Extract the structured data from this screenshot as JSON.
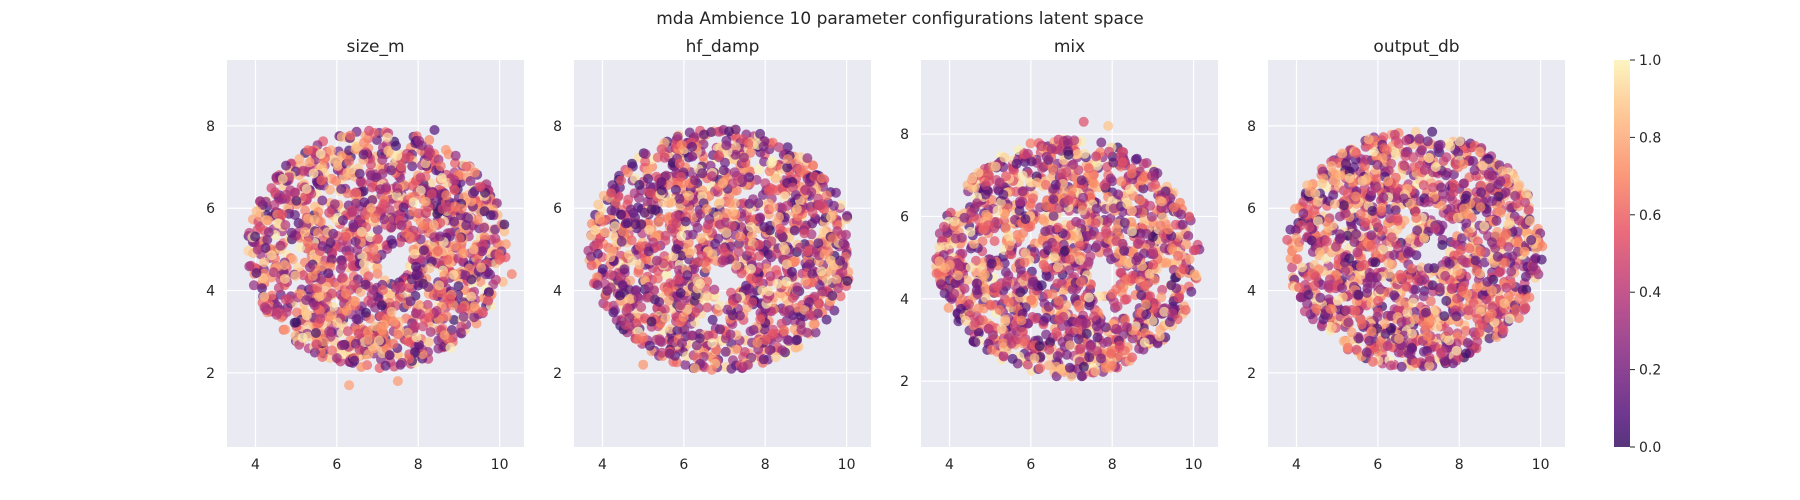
{
  "figure": {
    "suptitle": "mda Ambience 10 parameter configurations latent space"
  },
  "chart_data": [
    {
      "type": "scatter",
      "title": "size_m",
      "xlabel": "",
      "ylabel": "",
      "xlim": [
        3.3,
        10.6
      ],
      "ylim": [
        0.2,
        9.6
      ],
      "xticks": [
        4,
        6,
        8,
        10
      ],
      "yticks": [
        2,
        4,
        6,
        8
      ],
      "grid": true,
      "distribution": {
        "shape": "disk",
        "center": [
          7.0,
          5.0
        ],
        "radius_x": 3.2,
        "radius_y": 2.9,
        "hole_center": [
          7.4,
          4.6
        ],
        "hole_radius": 0.4,
        "point_count": 1500,
        "color_value_range": [
          0.0,
          1.0
        ]
      },
      "outliers": [
        [
          6.3,
          1.7
        ],
        [
          7.5,
          1.8
        ],
        [
          10.3,
          4.4
        ],
        [
          8.4,
          7.9
        ]
      ]
    },
    {
      "type": "scatter",
      "title": "hf_damp",
      "xlabel": "",
      "ylabel": "",
      "xlim": [
        3.3,
        10.6
      ],
      "ylim": [
        0.2,
        9.6
      ],
      "xticks": [
        4,
        6,
        8,
        10
      ],
      "yticks": [
        2,
        4,
        6,
        8
      ],
      "grid": true,
      "distribution": {
        "shape": "disk",
        "center": [
          6.9,
          5.0
        ],
        "radius_x": 3.25,
        "radius_y": 2.95,
        "hole_center": [
          7.0,
          4.3
        ],
        "hole_radius": 0.35,
        "point_count": 1500,
        "color_value_range": [
          0.0,
          1.0
        ]
      },
      "outliers": [
        [
          5.0,
          2.2
        ]
      ]
    },
    {
      "type": "scatter",
      "title": "mix",
      "xlabel": "",
      "ylabel": "",
      "xlim": [
        3.3,
        10.6
      ],
      "ylim": [
        0.4,
        9.8
      ],
      "xticks": [
        4,
        6,
        8,
        10
      ],
      "yticks": [
        2,
        4,
        6,
        8
      ],
      "grid": true,
      "distribution": {
        "shape": "disk",
        "center": [
          6.9,
          5.0
        ],
        "radius_x": 3.25,
        "radius_y": 2.9,
        "hole_center": [
          7.8,
          4.6
        ],
        "hole_radius": 0.4,
        "point_count": 1500,
        "color_value_range": [
          0.0,
          1.0
        ]
      },
      "outliers": [
        [
          7.3,
          8.3
        ],
        [
          7.9,
          8.2
        ]
      ]
    },
    {
      "type": "scatter",
      "title": "output_db",
      "xlabel": "",
      "ylabel": "",
      "xlim": [
        3.3,
        10.6
      ],
      "ylim": [
        0.2,
        9.6
      ],
      "xticks": [
        4,
        6,
        8,
        10
      ],
      "yticks": [
        2,
        4,
        6,
        8
      ],
      "grid": true,
      "distribution": {
        "shape": "disk",
        "center": [
          6.9,
          5.0
        ],
        "radius_x": 3.15,
        "radius_y": 2.9,
        "hole_center": [
          7.3,
          4.9
        ],
        "hole_radius": 0.35,
        "point_count": 1500,
        "color_value_range": [
          0.0,
          1.0
        ]
      },
      "outliers": []
    }
  ],
  "colorbar": {
    "min": 0.0,
    "max": 1.0,
    "ticks": [
      "0.0",
      "0.2",
      "0.4",
      "0.6",
      "0.8",
      "1.0"
    ],
    "colormap": "magma",
    "colormap_range": [
      0.2,
      0.98
    ]
  },
  "style": {
    "axes_background": "#eaeaf2",
    "grid_color": "#ffffff",
    "text_color": "#262626",
    "point_alpha": 0.7
  }
}
